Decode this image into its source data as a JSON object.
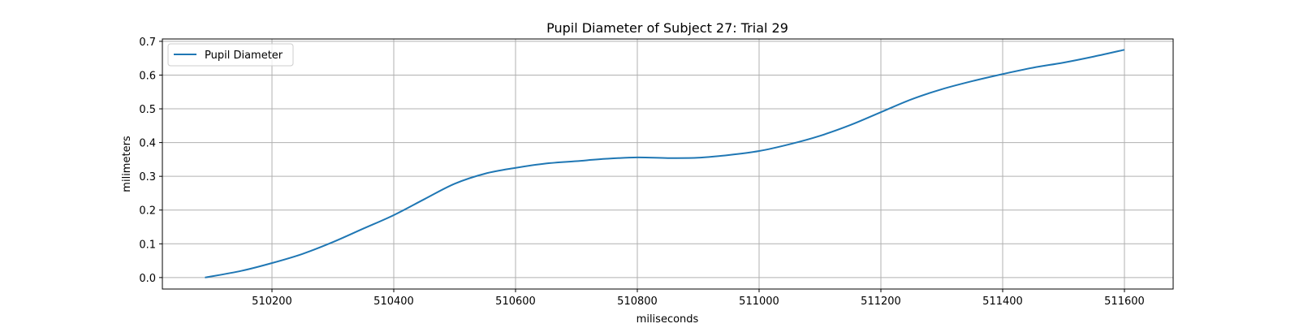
{
  "chart_data": {
    "type": "line",
    "title": "Pupil Diameter of Subject 27: Trial 29",
    "xlabel": "miliseconds",
    "ylabel": "milimeters",
    "xlim": [
      510020,
      511680
    ],
    "ylim": [
      -0.034,
      0.707
    ],
    "xticks": [
      510200,
      510400,
      510600,
      510800,
      511000,
      511200,
      511400,
      511600
    ],
    "xtick_labels": [
      "510200",
      "510400",
      "510600",
      "510800",
      "511000",
      "511200",
      "511400",
      "511600"
    ],
    "yticks": [
      0.0,
      0.1,
      0.2,
      0.3,
      0.4,
      0.5,
      0.6,
      0.7
    ],
    "ytick_labels": [
      "0.0",
      "0.1",
      "0.2",
      "0.3",
      "0.4",
      "0.5",
      "0.6",
      "0.7"
    ],
    "grid": true,
    "legend": {
      "placement": "top-left",
      "entries": [
        "Pupil Diameter"
      ]
    },
    "colors": {
      "line": "#1f77b4",
      "grid": "#b0b0b0",
      "axes": "#000000"
    },
    "series": [
      {
        "name": "Pupil Diameter",
        "x": [
          510090,
          510150,
          510200,
          510250,
          510300,
          510350,
          510400,
          510450,
          510500,
          510550,
          510600,
          510650,
          510700,
          510750,
          510800,
          510850,
          510900,
          510950,
          511000,
          511050,
          511100,
          511150,
          511200,
          511250,
          511300,
          511350,
          511400,
          511450,
          511500,
          511550,
          511600
        ],
        "y": [
          0.0,
          0.02,
          0.043,
          0.07,
          0.105,
          0.145,
          0.185,
          0.232,
          0.278,
          0.308,
          0.325,
          0.338,
          0.345,
          0.352,
          0.356,
          0.354,
          0.355,
          0.363,
          0.375,
          0.395,
          0.42,
          0.452,
          0.49,
          0.528,
          0.558,
          0.582,
          0.603,
          0.622,
          0.637,
          0.655,
          0.675
        ]
      }
    ]
  }
}
